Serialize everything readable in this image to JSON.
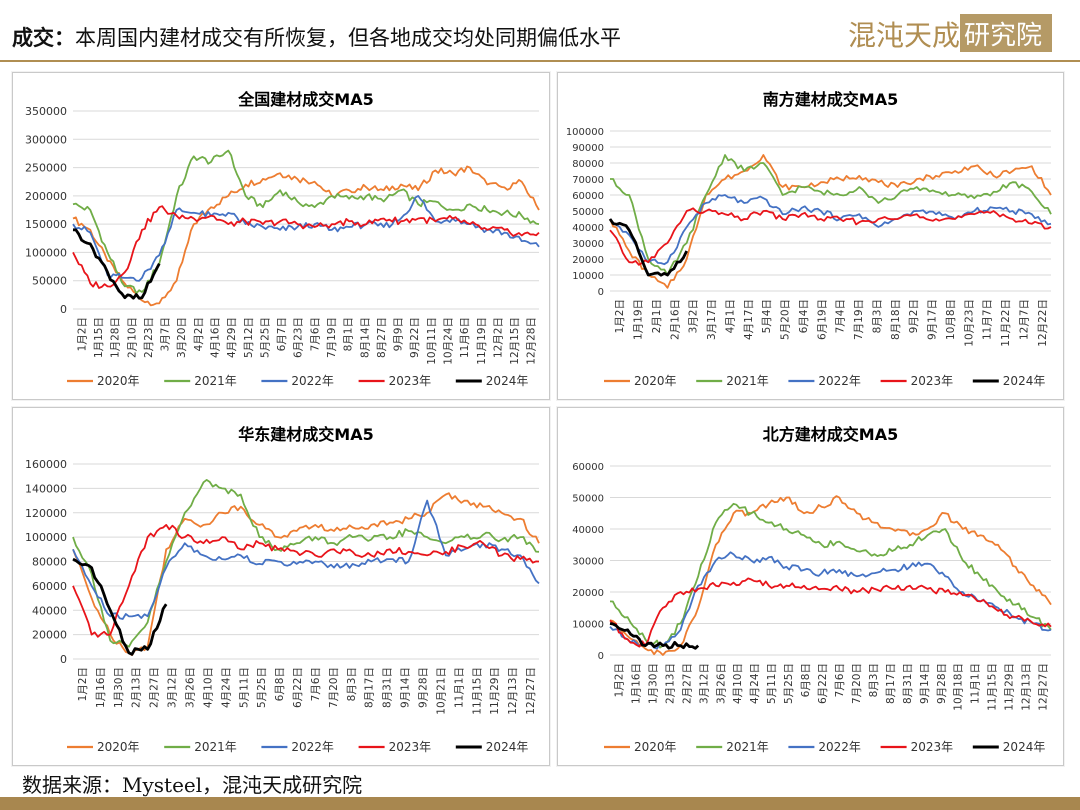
{
  "header": {
    "title_bold": "成交：",
    "title_text": "本周国内建材成交有所恢复，但各地成交均处同期偏低水平",
    "logo_text": "混沌天成研究院"
  },
  "footer": {
    "source": "数据来源：Mysteel，混沌天成研究院"
  },
  "colors": {
    "2020年": "#ED7D31",
    "2021年": "#70AD47",
    "2022年": "#4472C4",
    "2023年": "#E8141A",
    "2024年": "#000000",
    "accent": "#A8874F"
  },
  "chart_data": [
    {
      "type": "line",
      "title": "全国建材成交MA5",
      "ylim": [
        0,
        350000
      ],
      "yticks": [
        "0",
        "50000",
        "100000",
        "150000",
        "200000",
        "250000",
        "300000",
        "350000"
      ],
      "xticks": [
        "1月2日",
        "1月15日",
        "1月28日",
        "2月10日",
        "2月23日",
        "3月7日",
        "3月20日",
        "4月2日",
        "4月16日",
        "4月29日",
        "5月12日",
        "5月25日",
        "6月7日",
        "6月23日",
        "7月6日",
        "7月19日",
        "8月1日",
        "8月14日",
        "8月27日",
        "9月9日",
        "9月22日",
        "10月11日",
        "10月24日",
        "11月6日",
        "11月19日",
        "12月2日",
        "12月15日",
        "12月28日"
      ],
      "legend": [
        "2020年",
        "2021年",
        "2022年",
        "2023年",
        "2024年"
      ],
      "grid": true,
      "series": [
        {
          "name": "2020年",
          "values": [
            160000,
            140000,
            85000,
            45000,
            15000,
            10000,
            50000,
            150000,
            180000,
            200000,
            220000,
            230000,
            240000,
            230000,
            225000,
            200000,
            210000,
            215000,
            210000,
            220000,
            210000,
            245000,
            240000,
            250000,
            220000,
            215000,
            225000,
            175000
          ]
        },
        {
          "name": "2021年",
          "values": [
            185000,
            175000,
            100000,
            40000,
            30000,
            80000,
            200000,
            270000,
            260000,
            280000,
            200000,
            180000,
            210000,
            190000,
            180000,
            200000,
            195000,
            200000,
            190000,
            210000,
            185000,
            190000,
            175000,
            185000,
            175000,
            170000,
            165000,
            150000
          ]
        },
        {
          "name": "2022年",
          "values": [
            150000,
            135000,
            60000,
            55000,
            55000,
            95000,
            175000,
            170000,
            165000,
            170000,
            150000,
            145000,
            140000,
            145000,
            150000,
            140000,
            145000,
            150000,
            145000,
            160000,
            200000,
            155000,
            160000,
            150000,
            140000,
            135000,
            120000,
            110000
          ]
        },
        {
          "name": "2023年",
          "values": [
            100000,
            45000,
            40000,
            65000,
            140000,
            180000,
            165000,
            160000,
            165000,
            150000,
            155000,
            150000,
            155000,
            150000,
            145000,
            150000,
            155000,
            150000,
            160000,
            155000,
            160000,
            155000,
            160000,
            150000,
            140000,
            140000,
            130000,
            135000
          ]
        },
        {
          "name": "2024年",
          "values": [
            140000,
            115000,
            65000,
            20000,
            20000,
            80000
          ]
        }
      ]
    },
    {
      "type": "line",
      "title": "南方建材成交MA5",
      "ylim": [
        0,
        100000
      ],
      "yticks": [
        "0",
        "10000",
        "20000",
        "30000",
        "40000",
        "50000",
        "60000",
        "70000",
        "80000",
        "90000",
        "100000"
      ],
      "xticks": [
        "1月2日",
        "1月19日",
        "2月1日",
        "2月16日",
        "3月2日",
        "3月17日",
        "4月1日",
        "4月17日",
        "5月4日",
        "5月20日",
        "6月4日",
        "6月19日",
        "7月4日",
        "7月19日",
        "8月3日",
        "8月18日",
        "9月2日",
        "9月17日",
        "10月8日",
        "10月23日",
        "11月7日",
        "11月22日",
        "12月7日",
        "12月22日"
      ],
      "legend": [
        "2020年",
        "2021年",
        "2022年",
        "2023年",
        "2024年"
      ],
      "grid": true,
      "series": [
        {
          "name": "2020年",
          "values": [
            45000,
            25000,
            10000,
            2000,
            20000,
            60000,
            70000,
            75000,
            85000,
            65000,
            65000,
            68000,
            70000,
            72000,
            68000,
            65000,
            70000,
            72000,
            75000,
            78000,
            72000,
            75000,
            78000,
            60000
          ]
        },
        {
          "name": "2021年",
          "values": [
            70000,
            60000,
            20000,
            10000,
            30000,
            60000,
            85000,
            75000,
            80000,
            60000,
            65000,
            62000,
            60000,
            65000,
            55000,
            60000,
            65000,
            62000,
            60000,
            58000,
            62000,
            68000,
            62000,
            48000
          ]
        },
        {
          "name": "2022年",
          "values": [
            45000,
            35000,
            18000,
            18000,
            40000,
            55000,
            60000,
            55000,
            58000,
            48000,
            52000,
            50000,
            45000,
            48000,
            40000,
            45000,
            50000,
            48000,
            45000,
            50000,
            52000,
            50000,
            48000,
            42000
          ]
        },
        {
          "name": "2023年",
          "values": [
            38000,
            18000,
            18000,
            30000,
            50000,
            50000,
            48000,
            45000,
            50000,
            45000,
            48000,
            45000,
            45000,
            43000,
            45000,
            45000,
            48000,
            45000,
            45000,
            48000,
            50000,
            45000,
            42000,
            40000
          ]
        },
        {
          "name": "2024年",
          "values": [
            45000,
            38000,
            10000,
            10000,
            25000
          ]
        }
      ]
    },
    {
      "type": "line",
      "title": "华东建材成交MA5",
      "ylim": [
        0,
        160000
      ],
      "yticks": [
        "0",
        "20000",
        "40000",
        "60000",
        "80000",
        "100000",
        "120000",
        "140000",
        "160000"
      ],
      "xticks": [
        "1月2日",
        "1月16日",
        "1月30日",
        "2月13日",
        "2月27日",
        "3月12日",
        "3月26日",
        "4月10日",
        "4月24日",
        "5月11日",
        "5月25日",
        "6月8日",
        "6月22日",
        "7月6日",
        "7月20日",
        "8月3日",
        "8月17日",
        "8月31日",
        "9月14日",
        "9月28日",
        "10月21日",
        "11月1日",
        "11月15日",
        "11月29日",
        "12月13日",
        "12月27日"
      ],
      "legend": [
        "2020年",
        "2021年",
        "2022年",
        "2023年",
        "2024年"
      ],
      "grid": true,
      "series": [
        {
          "name": "2020年",
          "values": [
            90000,
            50000,
            20000,
            5000,
            10000,
            90000,
            115000,
            110000,
            120000,
            125000,
            110000,
            100000,
            105000,
            110000,
            105000,
            108000,
            110000,
            112000,
            115000,
            120000,
            135000,
            130000,
            125000,
            120000,
            115000,
            95000
          ]
        },
        {
          "name": "2021年",
          "values": [
            100000,
            70000,
            15000,
            10000,
            30000,
            80000,
            120000,
            145000,
            140000,
            135000,
            100000,
            90000,
            95000,
            100000,
            95000,
            100000,
            98000,
            100000,
            105000,
            100000,
            95000,
            100000,
            102000,
            98000,
            100000,
            88000
          ]
        },
        {
          "name": "2022年",
          "values": [
            90000,
            60000,
            35000,
            35000,
            35000,
            75000,
            95000,
            85000,
            82000,
            85000,
            78000,
            80000,
            78000,
            80000,
            75000,
            78000,
            80000,
            82000,
            80000,
            130000,
            85000,
            90000,
            95000,
            90000,
            85000,
            62000
          ]
        },
        {
          "name": "2023年",
          "values": [
            60000,
            20000,
            20000,
            60000,
            100000,
            110000,
            100000,
            95000,
            100000,
            90000,
            95000,
            90000,
            88000,
            85000,
            90000,
            88000,
            85000,
            90000,
            88000,
            85000,
            88000,
            92000,
            95000,
            85000,
            82000,
            80000
          ]
        },
        {
          "name": "2024年",
          "values": [
            82000,
            75000,
            40000,
            5000,
            8000,
            45000
          ]
        }
      ]
    },
    {
      "type": "line",
      "title": "北方建材成交MA5",
      "ylim": [
        0,
        60000
      ],
      "yticks": [
        "0",
        "10000",
        "20000",
        "30000",
        "40000",
        "50000",
        "60000"
      ],
      "xticks": [
        "1月2日",
        "1月16日",
        "1月30日",
        "2月13日",
        "2月27日",
        "3月12日",
        "3月26日",
        "4月10日",
        "4月24日",
        "5月11日",
        "5月25日",
        "6月8日",
        "6月22日",
        "7月6日",
        "7月20日",
        "8月3日",
        "8月17日",
        "8月31日",
        "9月14日",
        "9月28日",
        "10月18日",
        "11月1日",
        "11月15日",
        "11月29日",
        "12月13日",
        "12月27日"
      ],
      "legend": [
        "2020年",
        "2021年",
        "2022年",
        "2023年",
        "2024年"
      ],
      "grid": true,
      "series": [
        {
          "name": "2020年",
          "values": [
            11000,
            6000,
            2000,
            0,
            3000,
            15000,
            35000,
            45000,
            45000,
            48000,
            50000,
            45000,
            47000,
            50000,
            45000,
            42000,
            40000,
            38000,
            40000,
            45000,
            40000,
            38000,
            35000,
            28000,
            22000,
            16000
          ]
        },
        {
          "name": "2021年",
          "values": [
            17000,
            12000,
            5000,
            3000,
            10000,
            25000,
            42000,
            48000,
            45000,
            42000,
            40000,
            38000,
            35000,
            36000,
            33000,
            32000,
            33000,
            35000,
            38000,
            40000,
            30000,
            25000,
            20000,
            16000,
            12000,
            8000
          ]
        },
        {
          "name": "2022年",
          "values": [
            9000,
            5000,
            3000,
            3000,
            8000,
            22000,
            30000,
            32000,
            30000,
            31000,
            28000,
            27000,
            26000,
            27000,
            25000,
            26000,
            27000,
            28000,
            29000,
            25000,
            20000,
            17000,
            15000,
            12000,
            10000,
            8000
          ]
        },
        {
          "name": "2023年",
          "values": [
            11000,
            5000,
            3000,
            15000,
            20000,
            21000,
            22000,
            23000,
            24000,
            22000,
            22000,
            22000,
            21000,
            21000,
            20000,
            21000,
            21000,
            22000,
            21000,
            20000,
            19000,
            17000,
            14000,
            12000,
            10000,
            9000
          ]
        },
        {
          "name": "2024年",
          "values": [
            10000,
            8000,
            3000,
            3000,
            3000,
            3000
          ]
        }
      ]
    }
  ]
}
